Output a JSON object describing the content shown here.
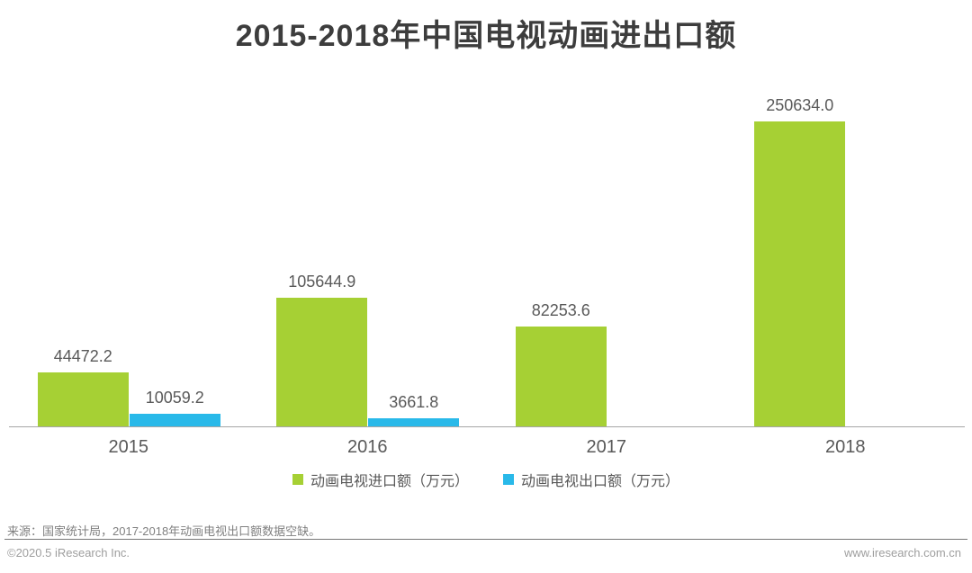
{
  "title": "2015-2018年中国电视动画进出口额",
  "chart_data": {
    "type": "bar",
    "title": "2015-2018年中国电视动画进出口额",
    "categories": [
      "2015",
      "2016",
      "2017",
      "2018"
    ],
    "series": [
      {
        "name": "动画电视进口额（万元）",
        "color": "#a6d034",
        "values": [
          44472.2,
          105644.9,
          82253.6,
          250634.0
        ]
      },
      {
        "name": "动画电视出口额（万元）",
        "color": "#29b9e9",
        "values": [
          10059.2,
          3661.8,
          null,
          null
        ]
      }
    ],
    "value_labels": [
      "44472.2",
      "105644.9",
      "82253.6",
      "250634.0",
      "10059.2",
      "3661.8"
    ],
    "ylim": [
      0,
      250634
    ],
    "grid": false,
    "legend_position": "bottom",
    "axis_color": "#a6a6a6",
    "label_color": "#595959"
  },
  "footer": {
    "source": "来源：国家统计局，2017-2018年动画电视出口额数据空缺。",
    "copyright": "©2020.5 iResearch Inc.",
    "website": "www.iresearch.com.cn"
  }
}
